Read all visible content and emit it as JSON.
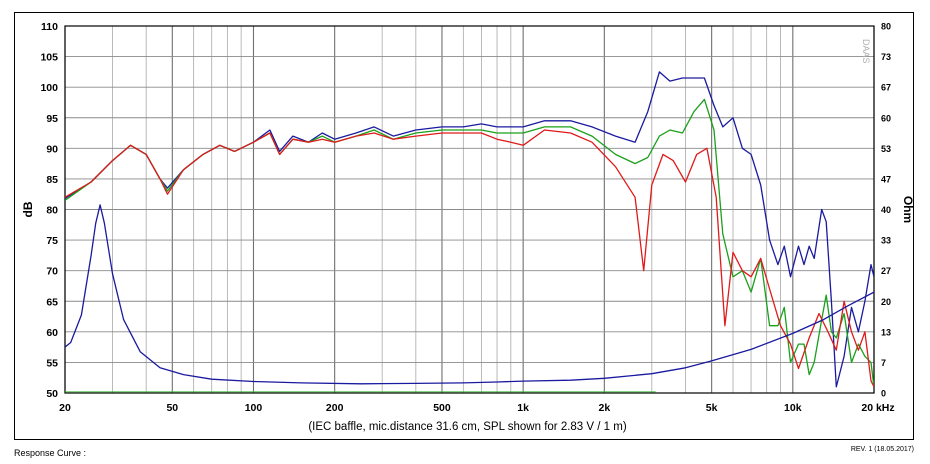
{
  "chart_data": {
    "type": "line",
    "subtitle": "(IEC baffle, mic.distance 31.6 cm, SPL shown for 2.83 V / 1 m)",
    "ylabel": "dB",
    "y2label": "Ohm",
    "x_scale": "log",
    "xlim": [
      20,
      20000
    ],
    "ylim": [
      50,
      110
    ],
    "y2lim": [
      0,
      80
    ],
    "x_ticks": [
      {
        "value": 20,
        "label": "20"
      },
      {
        "value": 50,
        "label": "50"
      },
      {
        "value": 100,
        "label": "100"
      },
      {
        "value": 200,
        "label": "200"
      },
      {
        "value": 500,
        "label": "500"
      },
      {
        "value": 1000,
        "label": "1k"
      },
      {
        "value": 2000,
        "label": "2k"
      },
      {
        "value": 5000,
        "label": "5k"
      },
      {
        "value": 10000,
        "label": "10k"
      },
      {
        "value": 20000,
        "label": "20 kHz"
      }
    ],
    "y_ticks": [
      "50",
      "55",
      "60",
      "65",
      "70",
      "75",
      "80",
      "85",
      "90",
      "95",
      "100",
      "105",
      "110"
    ],
    "y2_ticks": [
      "0",
      "7",
      "13",
      "20",
      "27",
      "33",
      "40",
      "47",
      "53",
      "60",
      "67",
      "73",
      "80"
    ],
    "grid": true,
    "side_label": "DAAS",
    "series": [
      {
        "color": "#1a1aa0",
        "axis": "left",
        "points": [
          [
            20,
            81.8
          ],
          [
            25,
            84.5
          ],
          [
            30,
            88
          ],
          [
            35,
            90.5
          ],
          [
            40,
            89
          ],
          [
            45,
            85
          ],
          [
            48,
            83.5
          ],
          [
            55,
            86.5
          ],
          [
            65,
            89
          ],
          [
            75,
            90.5
          ],
          [
            85,
            89.5
          ],
          [
            100,
            91
          ],
          [
            115,
            93
          ],
          [
            125,
            89.5
          ],
          [
            140,
            92
          ],
          [
            160,
            91
          ],
          [
            180,
            92.5
          ],
          [
            200,
            91.5
          ],
          [
            240,
            92.5
          ],
          [
            280,
            93.5
          ],
          [
            330,
            92
          ],
          [
            400,
            93
          ],
          [
            500,
            93.5
          ],
          [
            600,
            93.5
          ],
          [
            700,
            94
          ],
          [
            800,
            93.5
          ],
          [
            900,
            93.5
          ],
          [
            1000,
            93.5
          ],
          [
            1200,
            94.5
          ],
          [
            1500,
            94.5
          ],
          [
            1800,
            93.5
          ],
          [
            2200,
            92
          ],
          [
            2600,
            91
          ],
          [
            2900,
            96
          ],
          [
            3200,
            102.5
          ],
          [
            3500,
            101
          ],
          [
            3900,
            101.5
          ],
          [
            4300,
            101.5
          ],
          [
            4700,
            101.5
          ],
          [
            5100,
            97
          ],
          [
            5500,
            93.5
          ],
          [
            6000,
            95
          ],
          [
            6500,
            90
          ],
          [
            7000,
            89
          ],
          [
            7600,
            84
          ],
          [
            8200,
            75
          ],
          [
            8800,
            71
          ],
          [
            9300,
            74
          ],
          [
            9800,
            69
          ],
          [
            10500,
            74
          ],
          [
            11000,
            71
          ],
          [
            11500,
            74
          ],
          [
            12000,
            72
          ],
          [
            12800,
            80
          ],
          [
            13300,
            78
          ],
          [
            13900,
            65
          ],
          [
            14500,
            51
          ],
          [
            15500,
            56
          ],
          [
            16500,
            64
          ],
          [
            17500,
            60
          ],
          [
            18500,
            65
          ],
          [
            19500,
            71
          ],
          [
            20000,
            69
          ]
        ]
      },
      {
        "color": "#1aa01a",
        "axis": "left",
        "points": [
          [
            20,
            81.5
          ],
          [
            25,
            84.5
          ],
          [
            30,
            88
          ],
          [
            35,
            90.5
          ],
          [
            40,
            89
          ],
          [
            45,
            85
          ],
          [
            48,
            83
          ],
          [
            55,
            86.5
          ],
          [
            65,
            89
          ],
          [
            75,
            90.5
          ],
          [
            85,
            89.5
          ],
          [
            100,
            91
          ],
          [
            115,
            92.5
          ],
          [
            125,
            89
          ],
          [
            140,
            91.5
          ],
          [
            160,
            91
          ],
          [
            180,
            92
          ],
          [
            200,
            91
          ],
          [
            240,
            92
          ],
          [
            280,
            93
          ],
          [
            330,
            91.5
          ],
          [
            400,
            92.5
          ],
          [
            500,
            93
          ],
          [
            600,
            93
          ],
          [
            700,
            93
          ],
          [
            800,
            92.5
          ],
          [
            900,
            92.5
          ],
          [
            1000,
            92.5
          ],
          [
            1200,
            93.5
          ],
          [
            1500,
            93.5
          ],
          [
            1800,
            92
          ],
          [
            2200,
            89
          ],
          [
            2600,
            87.5
          ],
          [
            2900,
            88.5
          ],
          [
            3200,
            92
          ],
          [
            3500,
            93
          ],
          [
            3900,
            92.5
          ],
          [
            4300,
            96
          ],
          [
            4700,
            98
          ],
          [
            5100,
            93
          ],
          [
            5500,
            76
          ],
          [
            6000,
            69
          ],
          [
            6500,
            70
          ],
          [
            7000,
            66.5
          ],
          [
            7600,
            72
          ],
          [
            8200,
            61
          ],
          [
            8800,
            61
          ],
          [
            9300,
            64
          ],
          [
            9800,
            55
          ],
          [
            10500,
            58
          ],
          [
            11000,
            58
          ],
          [
            11500,
            53
          ],
          [
            12000,
            55
          ],
          [
            12800,
            62
          ],
          [
            13300,
            66
          ],
          [
            13900,
            60
          ],
          [
            14500,
            59
          ],
          [
            15500,
            63
          ],
          [
            16500,
            55
          ],
          [
            17500,
            58
          ],
          [
            18500,
            56
          ],
          [
            19500,
            55
          ],
          [
            20000,
            51
          ]
        ]
      },
      {
        "color": "#e01a1a",
        "axis": "left",
        "points": [
          [
            20,
            82
          ],
          [
            25,
            84.5
          ],
          [
            30,
            88
          ],
          [
            35,
            90.5
          ],
          [
            40,
            89
          ],
          [
            45,
            85
          ],
          [
            48,
            82.5
          ],
          [
            55,
            86.5
          ],
          [
            65,
            89
          ],
          [
            75,
            90.5
          ],
          [
            85,
            89.5
          ],
          [
            100,
            91
          ],
          [
            115,
            92.5
          ],
          [
            125,
            89
          ],
          [
            140,
            91.5
          ],
          [
            160,
            91
          ],
          [
            180,
            91.5
          ],
          [
            200,
            91
          ],
          [
            240,
            92
          ],
          [
            280,
            92.5
          ],
          [
            330,
            91.5
          ],
          [
            400,
            92
          ],
          [
            500,
            92.5
          ],
          [
            600,
            92.5
          ],
          [
            700,
            92.5
          ],
          [
            800,
            91.5
          ],
          [
            900,
            91
          ],
          [
            1000,
            90.5
          ],
          [
            1200,
            93
          ],
          [
            1500,
            92.5
          ],
          [
            1800,
            91
          ],
          [
            2200,
            87
          ],
          [
            2600,
            82
          ],
          [
            2800,
            70
          ],
          [
            3000,
            84
          ],
          [
            3300,
            89
          ],
          [
            3600,
            88
          ],
          [
            4000,
            84.5
          ],
          [
            4400,
            89
          ],
          [
            4800,
            90
          ],
          [
            5200,
            82
          ],
          [
            5600,
            61
          ],
          [
            6000,
            73
          ],
          [
            6500,
            70
          ],
          [
            7000,
            69
          ],
          [
            7600,
            72
          ],
          [
            8200,
            67
          ],
          [
            9000,
            61
          ],
          [
            9800,
            58
          ],
          [
            10500,
            54
          ],
          [
            11500,
            59
          ],
          [
            12500,
            63
          ],
          [
            13500,
            60
          ],
          [
            14500,
            57
          ],
          [
            15500,
            65
          ],
          [
            16500,
            60
          ],
          [
            17500,
            57
          ],
          [
            18500,
            60
          ],
          [
            19500,
            52
          ],
          [
            20000,
            51
          ]
        ]
      },
      {
        "color": "#1a1aa0",
        "axis": "right",
        "points": [
          [
            20,
            10
          ],
          [
            21,
            11
          ],
          [
            23,
            17
          ],
          [
            25,
            30
          ],
          [
            26,
            37
          ],
          [
            27,
            41
          ],
          [
            28,
            37
          ],
          [
            30,
            26
          ],
          [
            33,
            16
          ],
          [
            38,
            9
          ],
          [
            45,
            5.5
          ],
          [
            55,
            4
          ],
          [
            70,
            3
          ],
          [
            100,
            2.5
          ],
          [
            150,
            2.2
          ],
          [
            250,
            2
          ],
          [
            400,
            2.1
          ],
          [
            600,
            2.2
          ],
          [
            800,
            2.4
          ],
          [
            1000,
            2.6
          ],
          [
            1500,
            2.8
          ],
          [
            2000,
            3.2
          ],
          [
            3000,
            4.2
          ],
          [
            4000,
            5.5
          ],
          [
            5000,
            7
          ],
          [
            7000,
            9.5
          ],
          [
            10000,
            13
          ],
          [
            13000,
            16
          ],
          [
            16000,
            19
          ],
          [
            20000,
            22
          ]
        ]
      },
      {
        "color": "#3aba3a",
        "axis": "left",
        "points": [
          [
            20,
            50.2
          ],
          [
            3100,
            50.2
          ]
        ]
      }
    ]
  },
  "footer": {
    "left": "Response Curve :",
    "right": "REV. 1 (18.05.2017)"
  }
}
